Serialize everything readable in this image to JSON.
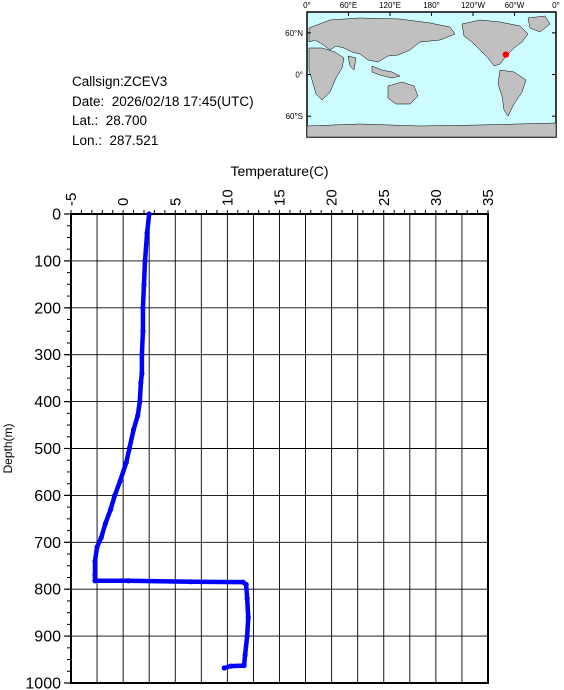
{
  "info": {
    "callsign": "Callsign:ZCEV3",
    "date": "Date:  2026/02/18 17:45(UTC)",
    "lat": "Lat.:  28.700",
    "lon": "Lon.:  287.521"
  },
  "map": {
    "lon_labels": [
      "0°",
      "60°E",
      "120°E",
      "180°",
      "120°W",
      "60°W",
      "0°"
    ],
    "lat_labels": [
      "60°N",
      "0°",
      "60°S"
    ],
    "station": {
      "lon": 287.521,
      "lat": 28.7
    },
    "ocean_color": "#ccfcff",
    "land_color": "#c0c0c0",
    "marker_color": "#ff0000"
  },
  "chart_data": {
    "type": "line",
    "title": "",
    "xlabel": "Temperature(C)",
    "ylabel": "Depth(m)",
    "xlim": [
      -5,
      35
    ],
    "ylim": [
      0,
      1000
    ],
    "x_ticks": [
      "-5",
      "0",
      "5",
      "10",
      "15",
      "20",
      "25",
      "30",
      "35"
    ],
    "y_ticks": [
      "0",
      "100",
      "200",
      "300",
      "400",
      "500",
      "600",
      "700",
      "800",
      "900",
      "1000"
    ],
    "grid": true,
    "line_color": "#0000ff",
    "series": [
      {
        "x": [
          2.5,
          2.3,
          2.1,
          2.0,
          1.9,
          1.9,
          1.8,
          1.8,
          1.7,
          1.6,
          1.4,
          1.0,
          0.6,
          0.3,
          -0.3,
          -0.8,
          -1.2,
          -1.7,
          -2.1,
          -2.5,
          -2.7,
          -2.7,
          -2.7,
          0.5,
          6.5,
          11.5,
          11.8,
          11.9,
          12.0,
          11.9,
          11.7,
          11.6,
          10.3,
          9.7
        ],
        "y": [
          0,
          40,
          100,
          150,
          200,
          250,
          300,
          340,
          360,
          400,
          430,
          460,
          500,
          530,
          570,
          600,
          630,
          660,
          690,
          710,
          740,
          770,
          782,
          782,
          784,
          785,
          790,
          820,
          860,
          900,
          940,
          963,
          964,
          968
        ]
      }
    ]
  }
}
